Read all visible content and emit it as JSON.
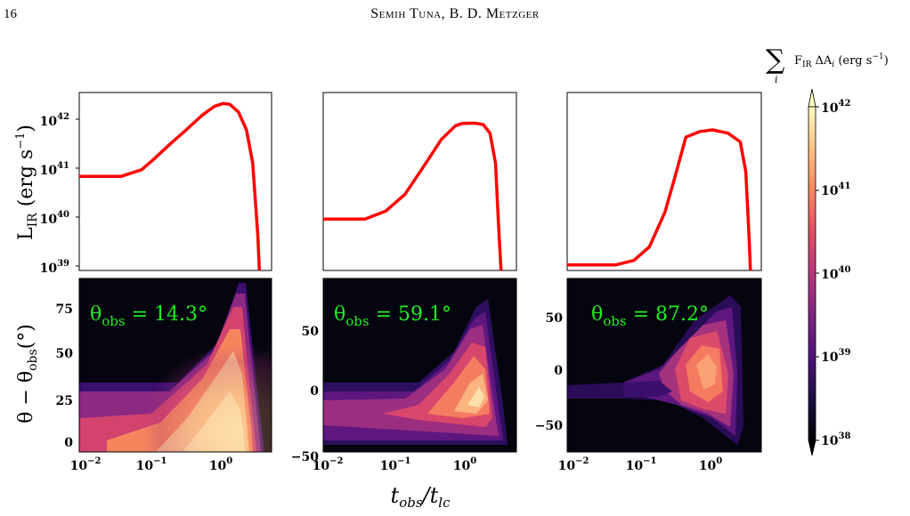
{
  "header": {
    "page_number": "16",
    "running_head": "Semih Tuna, B. D. Metzger"
  },
  "figure": {
    "top_ylabel": "L",
    "top_ylabel_sub": "IR",
    "top_ylabel_unit": " (erg s",
    "top_ylabel_exp": "−1",
    "top_ylabel_close": ")",
    "bottom_ylabel": "θ − θ",
    "bottom_ylabel_sub": "obs",
    "bottom_ylabel_unit": "(°)",
    "xlabel_main": "t",
    "xlabel_sub1": "obs",
    "xlabel_mid": "/t",
    "xlabel_sub2": "lc",
    "colorbar_label_sum": "∑",
    "colorbar_label_index": "i",
    "colorbar_label_text": "F",
    "colorbar_label_sub": "IR",
    "colorbar_label_rest": " ΔA",
    "colorbar_label_i": "i",
    "colorbar_label_unit": " (erg s",
    "colorbar_label_exp": "−1",
    "colorbar_label_close": ")",
    "colorbar_ticks": [
      {
        "base": "10",
        "exp": "42"
      },
      {
        "base": "10",
        "exp": "41"
      },
      {
        "base": "10",
        "exp": "40"
      },
      {
        "base": "10",
        "exp": "39"
      },
      {
        "base": "10",
        "exp": "38"
      }
    ],
    "x_ticks": [
      {
        "base": "10",
        "exp": "−2"
      },
      {
        "base": "10",
        "exp": "−1"
      },
      {
        "base": "10",
        "exp": "0"
      }
    ],
    "top_y_ticks": [
      {
        "base": "10",
        "exp": "42"
      },
      {
        "base": "10",
        "exp": "41"
      },
      {
        "base": "10",
        "exp": "40"
      },
      {
        "base": "10",
        "exp": "39"
      }
    ],
    "panels": [
      {
        "annotation_prefix": "θ",
        "annotation_sub": "obs",
        "annotation_value": " = 14.3°",
        "bottom_y_ticks": [
          "75",
          "50",
          "25",
          "0"
        ]
      },
      {
        "annotation_prefix": "θ",
        "annotation_sub": "obs",
        "annotation_value": " = 59.1°",
        "bottom_y_ticks": [
          "50",
          "0",
          "−50"
        ]
      },
      {
        "annotation_prefix": "θ",
        "annotation_sub": "obs",
        "annotation_value": " = 87.2°",
        "bottom_y_ticks": [
          "50",
          "0",
          "−50"
        ]
      }
    ],
    "colors": {
      "curve": "#ff0000",
      "annotation": "#22ee22",
      "background": "#050510"
    }
  },
  "chart_data": [
    {
      "type": "line",
      "panel": 1,
      "xscale": "log",
      "yscale": "log",
      "xlim": [
        0.01,
        6
      ],
      "ylim": [
        1e+39,
        4e+42
      ],
      "x": [
        0.01,
        0.04,
        0.08,
        0.12,
        0.2,
        0.35,
        0.6,
        0.9,
        1.2,
        1.5,
        2.0,
        2.6,
        3.2,
        3.8,
        4.0
      ],
      "y": [
        8e+40,
        8e+40,
        1.1e+41,
        1.8e+41,
        3.5e+41,
        7e+41,
        1.4e+42,
        2.1e+42,
        2.4e+42,
        2.3e+42,
        1.6e+42,
        7e+41,
        1.5e+41,
        5e+39,
        1e+39
      ]
    },
    {
      "type": "line",
      "panel": 2,
      "xscale": "log",
      "yscale": "log",
      "xlim": [
        0.01,
        6
      ],
      "ylim": [
        1e+39,
        4e+42
      ],
      "x": [
        0.01,
        0.04,
        0.08,
        0.15,
        0.3,
        0.5,
        0.8,
        1.0,
        1.5,
        2.0,
        2.5,
        3.0,
        3.3,
        3.6
      ],
      "y": [
        1.1e+40,
        1.1e+40,
        1.6e+40,
        3.5e+40,
        1.5e+41,
        4.5e+41,
        8.5e+41,
        9.5e+41,
        9.6e+41,
        9e+41,
        6e+41,
        1.5e+41,
        1e+40,
        1e+39
      ]
    },
    {
      "type": "line",
      "panel": 3,
      "xscale": "log",
      "yscale": "log",
      "xlim": [
        0.01,
        6
      ],
      "ylim": [
        1e+39,
        4e+42
      ],
      "x": [
        0.01,
        0.05,
        0.09,
        0.15,
        0.25,
        0.35,
        0.5,
        0.8,
        1.2,
        2.0,
        3.0,
        3.6,
        4.0,
        4.2
      ],
      "y": [
        1.3e+39,
        1.3e+39,
        1.6e+39,
        3e+39,
        1.5e+40,
        8e+40,
        5e+41,
        6.5e+41,
        7e+41,
        6e+41,
        4e+41,
        1e+41,
        5e+39,
        1e+39
      ]
    },
    {
      "type": "heatmap",
      "panel": 1,
      "x_scale": "log",
      "xlim": [
        0.01,
        6
      ],
      "ylim": [
        -10,
        90
      ],
      "value_range": [
        1e+38,
        1e+42
      ]
    },
    {
      "type": "heatmap",
      "panel": 2,
      "x_scale": "log",
      "xlim": [
        0.01,
        6
      ],
      "ylim": [
        -50,
        90
      ],
      "value_range": [
        1e+38,
        1e+42
      ]
    },
    {
      "type": "heatmap",
      "panel": 3,
      "x_scale": "log",
      "xlim": [
        0.01,
        6
      ],
      "ylim": [
        -80,
        80
      ],
      "value_range": [
        1e+38,
        1e+42
      ]
    }
  ]
}
